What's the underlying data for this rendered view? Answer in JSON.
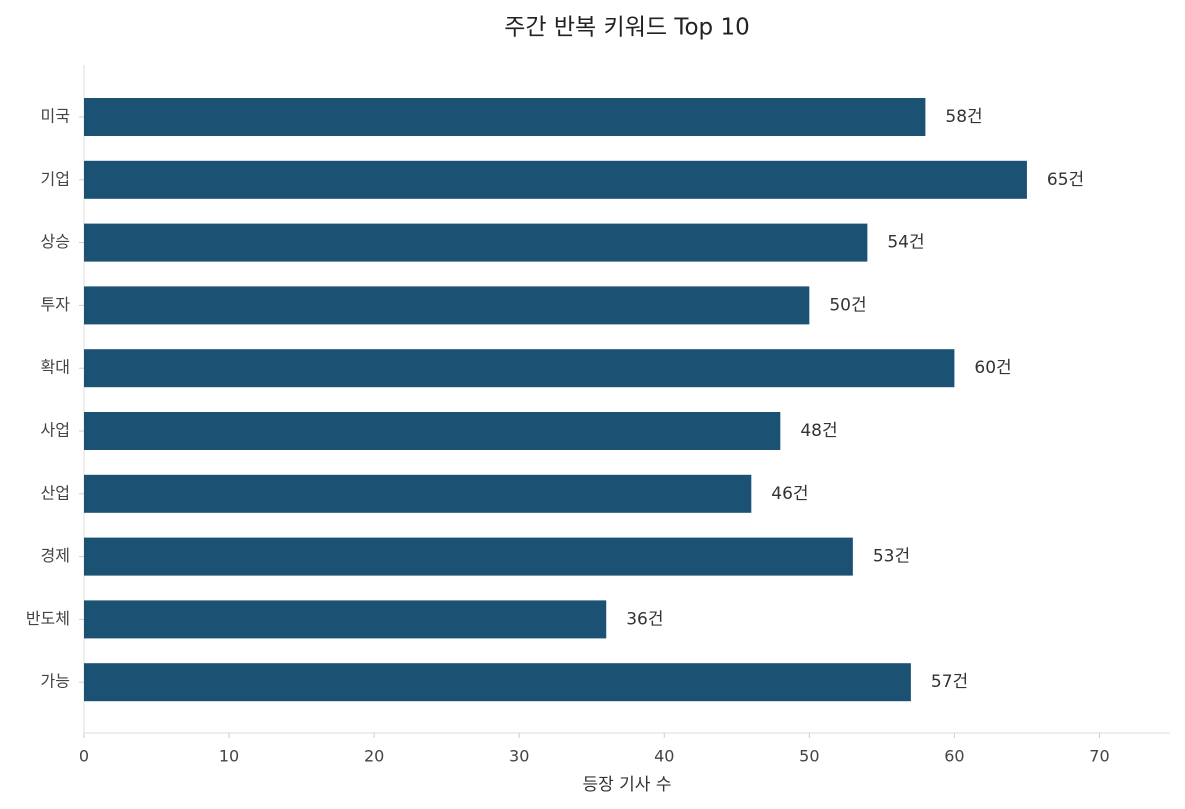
{
  "chart_data": {
    "type": "barh",
    "title": "주간 반복 키워드 Top 10",
    "x_label": "등장 기사 수",
    "categories": [
      "미국",
      "기업",
      "상승",
      "투자",
      "확대",
      "사업",
      "산업",
      "경제",
      "반도체",
      "가능"
    ],
    "values": [
      58,
      65,
      54,
      50,
      60,
      48,
      46,
      53,
      36,
      57
    ],
    "value_labels": [
      "58건",
      "65건",
      "54건",
      "50건",
      "60건",
      "48건",
      "46건",
      "53건",
      "36건",
      "57건"
    ],
    "color": "#1b5172",
    "xlim": [
      0,
      75
    ],
    "xticks": [
      0,
      10,
      20,
      30,
      40,
      50,
      60,
      70
    ],
    "grid": false
  }
}
